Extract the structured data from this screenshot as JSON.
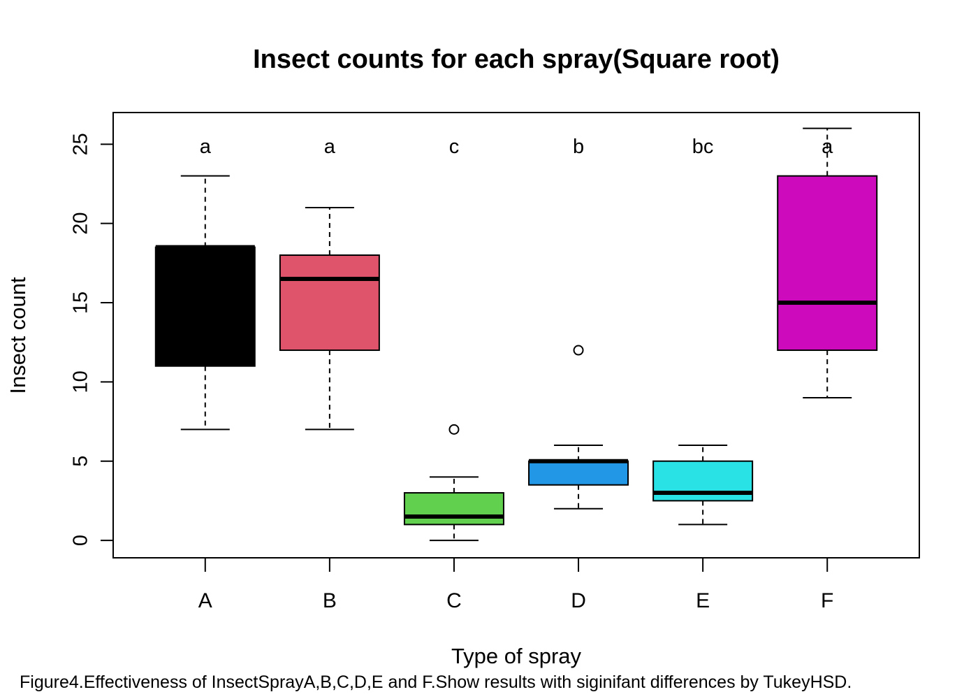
{
  "chart_data": {
    "type": "box",
    "title": "Insect counts for each spray(Square root)",
    "xlabel": "Type of spray",
    "ylabel": "Insect count",
    "ylim": [
      -1.1,
      27
    ],
    "yticks": [
      0,
      5,
      10,
      15,
      20,
      25
    ],
    "grid": false,
    "boxes": [
      {
        "category": "A",
        "min": 7,
        "q1": 11,
        "median": 18.5,
        "q3": 18.5,
        "max": 23,
        "outliers": [],
        "letter": "a",
        "color": "#000000"
      },
      {
        "category": "B",
        "min": 7,
        "q1": 12,
        "median": 16.5,
        "q3": 18,
        "max": 21,
        "outliers": [],
        "letter": "a",
        "color": "#DF536B"
      },
      {
        "category": "C",
        "min": 0,
        "q1": 1,
        "median": 1.5,
        "q3": 3,
        "max": 4,
        "outliers": [
          7
        ],
        "letter": "c",
        "color": "#61D04F"
      },
      {
        "category": "D",
        "min": 2,
        "q1": 3.5,
        "median": 5,
        "q3": 5,
        "max": 6,
        "outliers": [
          12
        ],
        "letter": "b",
        "color": "#2297E6"
      },
      {
        "category": "E",
        "min": 1,
        "q1": 2.5,
        "median": 3,
        "q3": 5,
        "max": 6,
        "outliers": [],
        "letter": "bc",
        "color": "#28E2E5"
      },
      {
        "category": "F",
        "min": 9,
        "q1": 12,
        "median": 15,
        "q3": 23,
        "max": 26,
        "outliers": [],
        "letter": "a",
        "color": "#CD0BBC"
      }
    ]
  },
  "caption": "Figure4.Effectiveness of InsectSprayA,B,C,D,E and F.Show results with siginifant differences by TukeyHSD."
}
